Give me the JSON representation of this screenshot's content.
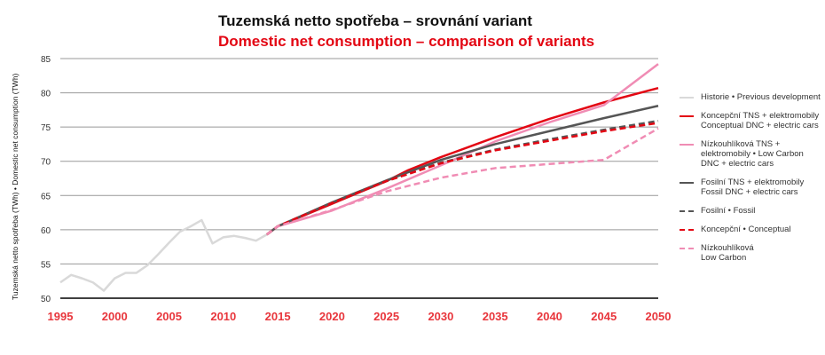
{
  "title_cz": "Tuzemská netto spotřeba – srovnání variant",
  "title_en": "Domestic net consumption – comparison of variants",
  "chart_data": {
    "type": "line",
    "ylabel": "Tuzemská netto spotřeba (TWh) • Domestic net consumption (TWh)",
    "xlim": [
      1995,
      2050
    ],
    "ylim": [
      50,
      85
    ],
    "x_ticks": [
      "1995",
      "2000",
      "2005",
      "2010",
      "2015",
      "2020",
      "2025",
      "2030",
      "2035",
      "2040",
      "2045",
      "2050"
    ],
    "y_ticks": [
      "50",
      "55",
      "60",
      "65",
      "70",
      "75",
      "80",
      "85"
    ],
    "grid": true,
    "legend": "right",
    "series": [
      {
        "name": "Historie • Previous development",
        "color": "#d9d9d9",
        "dash": false,
        "x": [
          1995,
          1996,
          1997,
          1998,
          1999,
          2000,
          2001,
          2002,
          2003,
          2004,
          2005,
          2006,
          2007,
          2008,
          2009,
          2010,
          2011,
          2012,
          2013,
          2014
        ],
        "y": [
          52.3,
          53.4,
          52.9,
          52.3,
          51.1,
          52.9,
          53.7,
          53.7,
          54.8,
          56.4,
          58.1,
          59.7,
          60.5,
          61.4,
          58.0,
          58.9,
          59.1,
          58.8,
          58.4,
          59.3
        ]
      },
      {
        "name": "Koncepční TNS + elektromobily Conceptual DNC + electric cars",
        "color": "#e30613",
        "dash": false,
        "x": [
          2014,
          2015,
          2020,
          2025,
          2027,
          2030,
          2035,
          2040,
          2045,
          2050
        ],
        "y": [
          59.3,
          60.5,
          63.8,
          67.1,
          68.7,
          70.6,
          73.5,
          76.2,
          78.6,
          80.7
        ]
      },
      {
        "name": "Nízkouhlíková TNS + elektromobily • Low Carbon DNC + electric cars",
        "color": "#f08cb4",
        "dash": false,
        "x": [
          2014,
          2015,
          2020,
          2025,
          2030,
          2035,
          2040,
          2045,
          2050
        ],
        "y": [
          59.3,
          60.5,
          62.8,
          66.0,
          69.4,
          72.9,
          75.7,
          78.2,
          84.2
        ]
      },
      {
        "name": "Fosilní TNS + elektromobily Fossil DNC + electric cars",
        "color": "#555555",
        "dash": false,
        "x": [
          2014,
          2015,
          2020,
          2025,
          2030,
          2035,
          2040,
          2045,
          2050
        ],
        "y": [
          59.3,
          60.5,
          64.0,
          67.2,
          70.2,
          72.5,
          74.4,
          76.3,
          78.1
        ]
      },
      {
        "name": "Fosilní • Fossil",
        "color": "#555555",
        "dash": true,
        "x": [
          2014,
          2015,
          2020,
          2025,
          2030,
          2035,
          2040,
          2045,
          2050
        ],
        "y": [
          59.3,
          60.5,
          63.9,
          67.1,
          69.8,
          71.7,
          73.2,
          74.6,
          75.9
        ]
      },
      {
        "name": "Koncepční • Conceptual",
        "color": "#e30613",
        "dash": true,
        "x": [
          2014,
          2015,
          2020,
          2025,
          2030,
          2035,
          2040,
          2045,
          2050
        ],
        "y": [
          59.3,
          60.5,
          63.9,
          67.1,
          69.7,
          71.6,
          73.0,
          74.4,
          75.6
        ]
      },
      {
        "name": "Nízkouhlíková Low Carbon",
        "color": "#f08cb4",
        "dash": true,
        "x": [
          2014,
          2015,
          2020,
          2025,
          2030,
          2035,
          2040,
          2045,
          2050
        ],
        "y": [
          59.3,
          60.5,
          62.9,
          65.6,
          67.6,
          69.0,
          69.6,
          70.2,
          74.8
        ]
      }
    ]
  },
  "legend_items": [
    "Historie • Previous development",
    "Koncepční TNS + elektromobily\nConceptual DNC + electric cars",
    "Nízkouhlíková TNS +\nelektromobily • Low Carbon\nDNC + electric cars",
    "Fosilní TNS + elektromobily\nFossil DNC + electric cars",
    "Fosilní • Fossil",
    "Koncepční • Conceptual",
    "Nízkouhlíková\nLow Carbon"
  ]
}
